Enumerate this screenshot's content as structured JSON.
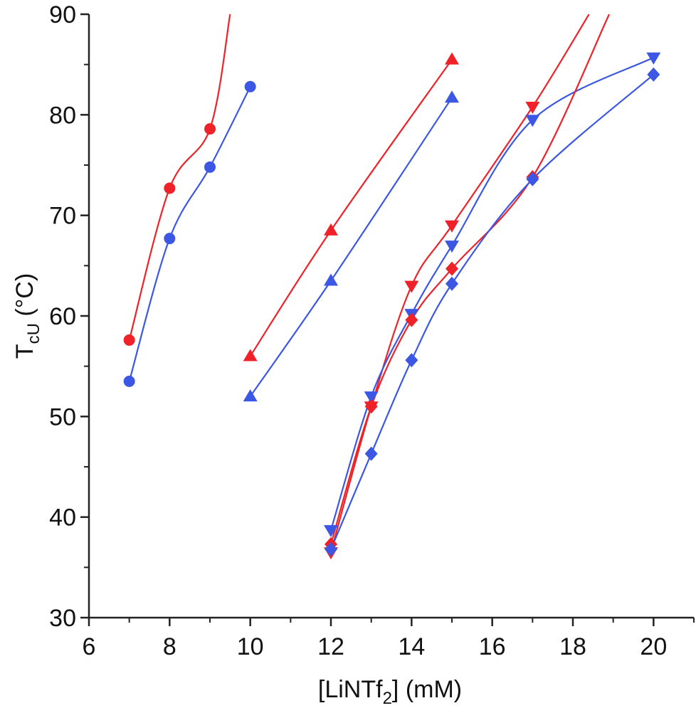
{
  "chart_data": {
    "type": "scatter",
    "xlabel": {
      "main": "[LiNTf",
      "sub": "2",
      "tail": "] (mM)"
    },
    "ylabel": {
      "main": "T",
      "sub": "cU",
      "tail": " (°C)"
    },
    "xlim": [
      6,
      21
    ],
    "ylim": [
      30,
      90
    ],
    "xticks": [
      6,
      8,
      10,
      12,
      14,
      16,
      18,
      20
    ],
    "yticks": [
      30,
      40,
      50,
      60,
      70,
      80,
      90
    ],
    "grid": false,
    "legend": "none",
    "colors": {
      "red": "#ee2228",
      "blue": "#3b57e4"
    },
    "series": [
      {
        "color": "red",
        "marker": "circle",
        "x": [
          7,
          8,
          9
        ],
        "y": [
          57.6,
          72.7,
          78.6
        ]
      },
      {
        "color": "blue",
        "marker": "circle",
        "x": [
          7,
          8,
          9,
          10
        ],
        "y": [
          53.5,
          67.7,
          74.8,
          82.8
        ]
      },
      {
        "color": "red",
        "marker": "triangle-up",
        "x": [
          10,
          12,
          15
        ],
        "y": [
          56.0,
          68.5,
          85.5
        ]
      },
      {
        "color": "blue",
        "marker": "triangle-up",
        "x": [
          10,
          12,
          15
        ],
        "y": [
          52.0,
          63.5,
          81.7
        ]
      },
      {
        "color": "red",
        "marker": "triangle-down",
        "x": [
          12,
          13,
          14,
          15,
          17
        ],
        "y": [
          36.5,
          51.0,
          63.0,
          69.0,
          80.8
        ]
      },
      {
        "color": "blue",
        "marker": "triangle-down",
        "x": [
          12,
          13,
          14,
          15,
          17,
          20
        ],
        "y": [
          38.7,
          52.0,
          60.2,
          67.0,
          79.5,
          85.7
        ]
      },
      {
        "color": "red",
        "marker": "diamond",
        "x": [
          12,
          13,
          14,
          15,
          17
        ],
        "y": [
          37.3,
          51.0,
          59.6,
          64.7,
          73.8
        ]
      },
      {
        "color": "blue",
        "marker": "diamond",
        "x": [
          12,
          13,
          14,
          15,
          17,
          20
        ],
        "y": [
          36.8,
          46.3,
          55.6,
          63.2,
          73.6,
          84.0
        ]
      }
    ]
  }
}
